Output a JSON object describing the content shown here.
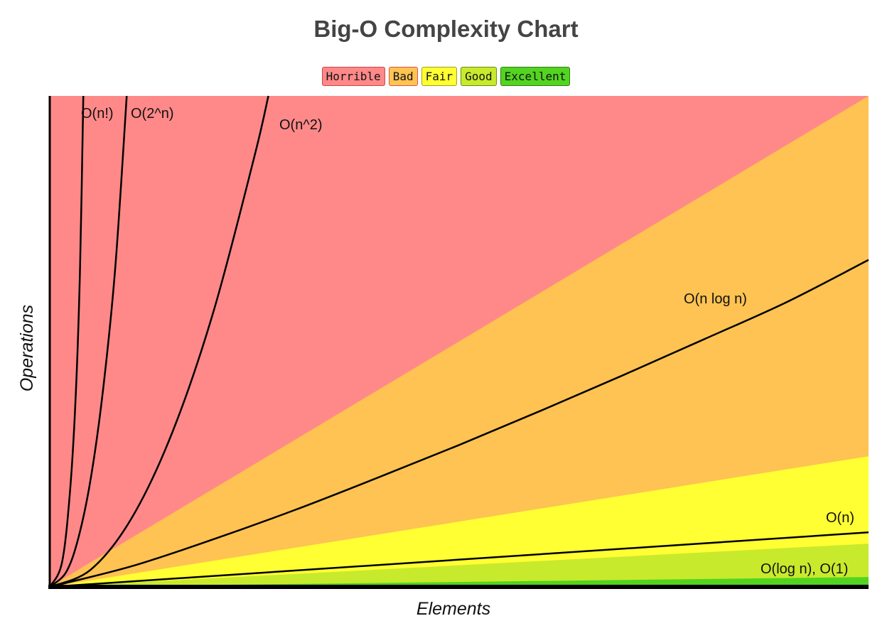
{
  "chart_data": {
    "type": "line",
    "title": "Big-O Complexity Chart",
    "xlabel": "Elements",
    "ylabel": "Operations",
    "xlim": [
      0,
      100
    ],
    "ylim": [
      0,
      100
    ],
    "grid": false,
    "legend": {
      "placement": "top-center",
      "entries": [
        {
          "label": "Horrible",
          "color": "#ff8989",
          "border": "#c94646"
        },
        {
          "label": "Bad",
          "color": "#fec352",
          "border": "#d9534f"
        },
        {
          "label": "Fair",
          "color": "#ffff33",
          "border": "#a0a020"
        },
        {
          "label": "Good",
          "color": "#c8ea2c",
          "border": "#6a8a10"
        },
        {
          "label": "Excellent",
          "color": "#53d420",
          "border": "#2e8010"
        }
      ]
    },
    "regions": [
      {
        "name": "Horrible",
        "color": "#ff8989",
        "top_at_x100": 1000
      },
      {
        "name": "Bad",
        "color": "#fec352",
        "top_at_x100": 100
      },
      {
        "name": "Fair",
        "color": "#ffff33",
        "top_at_x100": 26.6
      },
      {
        "name": "Good",
        "color": "#c8ea2c",
        "top_at_x100": 8.8
      },
      {
        "name": "Excellent",
        "color": "#53d420",
        "top_at_x100": 2
      }
    ],
    "series": [
      {
        "name": "O(n!)",
        "x": [
          0,
          1.5,
          2.5,
          3.2,
          3.7,
          4.1
        ],
        "y": [
          0,
          5,
          20,
          40,
          65,
          100
        ]
      },
      {
        "name": "O(2^n)",
        "x": [
          0,
          2,
          3.5,
          5,
          6.5,
          8,
          9.4
        ],
        "y": [
          0,
          3,
          10,
          22,
          40,
          65,
          100
        ]
      },
      {
        "name": "O(n^2)",
        "x": [
          0,
          5,
          10,
          15,
          20,
          25,
          26.7
        ],
        "y": [
          0,
          3.5,
          14,
          31.6,
          56.1,
          87.7,
          100
        ]
      },
      {
        "name": "O(n log n)",
        "x": [
          0,
          10,
          20,
          30,
          40,
          50,
          60,
          70,
          80,
          90,
          100
        ],
        "y": [
          0,
          4.2,
          9.7,
          15.7,
          22.2,
          28.9,
          35.9,
          43.1,
          50.5,
          58,
          66.6
        ]
      },
      {
        "name": "O(n)",
        "x": [
          0,
          100
        ],
        "y": [
          0,
          11.1
        ]
      },
      {
        "name": "O(log n), O(1)",
        "x": [
          0,
          100
        ],
        "y": [
          0,
          0.3
        ]
      }
    ]
  }
}
